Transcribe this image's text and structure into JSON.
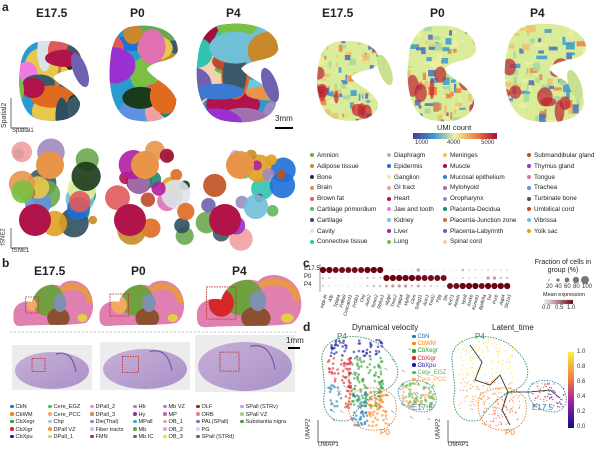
{
  "panels": {
    "a": "a",
    "b": "b",
    "c": "c",
    "d": "d"
  },
  "stages": [
    "E17.5",
    "P0",
    "P4"
  ],
  "panel_a": {
    "spatial_axes": {
      "x": "Spatial1",
      "y": "Spatial2"
    },
    "tsne_axes": {
      "x": "tSNE1",
      "y": "tSNE2"
    },
    "scale_bar": "3mm",
    "umi": {
      "label": "UMI count",
      "ticks": [
        "1000",
        "4000",
        "5000"
      ]
    },
    "legend": [
      {
        "label": "Amnion",
        "color": "#6aa84f"
      },
      {
        "label": "Adipose tissue",
        "color": "#c9892a"
      },
      {
        "label": "Bone",
        "color": "#1b3a1b"
      },
      {
        "label": "Brain",
        "color": "#e8954a"
      },
      {
        "label": "Brown fat",
        "color": "#e05a5a"
      },
      {
        "label": "Cartilage primordium",
        "color": "#5cb85c"
      },
      {
        "label": "Cartilage",
        "color": "#2f4f5f"
      },
      {
        "label": "Cavity",
        "color": "#d9e4ea"
      },
      {
        "label": "Connective tissue",
        "color": "#2ec4b0"
      },
      {
        "label": "Diaphragm",
        "color": "#c9a6d6"
      },
      {
        "label": "Epidermis",
        "color": "#1f6fd6"
      },
      {
        "label": "Ganglion",
        "color": "#e6eea0"
      },
      {
        "label": "GI tract",
        "color": "#f0a0a0"
      },
      {
        "label": "Heart",
        "color": "#b0144a"
      },
      {
        "label": "Jaw and tooth",
        "color": "#f07ae0"
      },
      {
        "label": "Kidney",
        "color": "#6cc8e0"
      },
      {
        "label": "Liver",
        "color": "#b01ea0"
      },
      {
        "label": "Lung",
        "color": "#7ac143"
      },
      {
        "label": "Meninges",
        "color": "#e8c84a"
      },
      {
        "label": "Muscle",
        "color": "#a0103a"
      },
      {
        "label": "Mucosal epithelium",
        "color": "#3a7ad0"
      },
      {
        "label": "Mylohyoid",
        "color": "#a070b0"
      },
      {
        "label": "Oropharynx",
        "color": "#a088c0"
      },
      {
        "label": "Placenta-Decidua",
        "color": "#1a8a6a"
      },
      {
        "label": "Placenta-Junction zone",
        "color": "#e06a20"
      },
      {
        "label": "Placenta-Labyrinth",
        "color": "#7060b0"
      },
      {
        "label": "Spinal cord",
        "color": "#f2d0b0"
      },
      {
        "label": "Submandibular gland",
        "color": "#c05020"
      },
      {
        "label": "Thymus gland",
        "color": "#9a30d0"
      },
      {
        "label": "Tongue",
        "color": "#e070b0"
      },
      {
        "label": "Trachea",
        "color": "#6090e0"
      },
      {
        "label": "Turbinate bone",
        "color": "#3a5a6a"
      },
      {
        "label": "Umbilical cord",
        "color": "#c04a2a"
      },
      {
        "label": "Vibrissa",
        "color": "#70c0d8"
      },
      {
        "label": "Yolk sac",
        "color": "#e0a020"
      }
    ]
  },
  "panel_b": {
    "scale_bar": "1mm",
    "legend": [
      {
        "label": "CbN",
        "color": "#1f77b4"
      },
      {
        "label": "CbWM",
        "color": "#ff7f0e"
      },
      {
        "label": "CbXegr",
        "color": "#2ca02c"
      },
      {
        "label": "CbXigr",
        "color": "#d62728"
      },
      {
        "label": "CbXpu",
        "color": "#1a1aa0"
      },
      {
        "label": "Cere_EGZ",
        "color": "#4cbf4c"
      },
      {
        "label": "Cere_PCC",
        "color": "#f5a860"
      },
      {
        "label": "Chp",
        "color": "#9ecae1"
      },
      {
        "label": "DPall VZ",
        "color": "#e89a40"
      },
      {
        "label": "DPall_1",
        "color": "#e0d040"
      },
      {
        "label": "DPall_2",
        "color": "#f09a9a"
      },
      {
        "label": "DPall_3",
        "color": "#e08a40"
      },
      {
        "label": "Die(Thal)",
        "color": "#8090b0"
      },
      {
        "label": "Fiber tracts",
        "color": "#c8c8d8"
      },
      {
        "label": "FMN",
        "color": "#a03070"
      },
      {
        "label": "Hb",
        "color": "#d070b0"
      },
      {
        "label": "Hy",
        "color": "#8a3a8a"
      },
      {
        "label": "MPall",
        "color": "#30b0c0"
      },
      {
        "label": "Mb",
        "color": "#70a040"
      },
      {
        "label": "Mb IC",
        "color": "#9050a0"
      },
      {
        "label": "Mb VZ",
        "color": "#b080d0"
      },
      {
        "label": "MP",
        "color": "#c060c0"
      },
      {
        "label": "OB_1",
        "color": "#f0a0b0"
      },
      {
        "label": "OB_2",
        "color": "#d0b0e0"
      },
      {
        "label": "OB_3",
        "color": "#f0e020"
      },
      {
        "label": "OLF",
        "color": "#8a3010"
      },
      {
        "label": "ORB",
        "color": "#f08080"
      },
      {
        "label": "PAL(SPall)",
        "color": "#6080c0"
      },
      {
        "label": "PG",
        "color": "#e0d0f0"
      },
      {
        "label": "SPall (STRd)",
        "color": "#8a4a9a"
      },
      {
        "label": "SPall (STRv)",
        "color": "#c0a0e0"
      },
      {
        "label": "SPall VZ",
        "color": "#a0d080"
      },
      {
        "label": "Substantia nigra",
        "color": "#4a9a3a"
      }
    ]
  },
  "chart_data": [
    {
      "type": "dotplot",
      "panel": "c",
      "rows": [
        "E17.5",
        "P0",
        "P4"
      ],
      "genes": [
        "Hbb-bt",
        "Afp",
        "Tpbpa",
        "Prl8a9",
        "Ceacam11",
        "Prl3b1",
        "Ctsj",
        "Auts2",
        "Tenm2",
        "Rbfox1",
        "Mylpf",
        "Tnnc2",
        "Fabp4",
        "Myh8",
        "Ckm",
        "Snhg11",
        "Actc1",
        "Tnnt2",
        "Fgg",
        "Sln",
        "Krt71",
        "Amelx",
        "Vps8",
        "Aurkb",
        "Kcnmt1",
        "Bpifb9a",
        "Tnl",
        "Purb",
        "Aqp4",
        "Slc1a3"
      ],
      "mean_expression": [
        [
          1,
          1,
          0.95,
          0.95,
          0.95,
          0.95,
          0.95,
          1,
          1,
          1,
          0.05,
          0.05,
          0.05,
          0.05,
          0.05,
          0.35,
          0.05,
          0.05,
          0.05,
          0.05,
          0.05,
          0.05,
          0.25,
          0.1,
          0.1,
          0.05,
          0.1,
          0.1,
          0.1,
          0.1
        ],
        [
          0.2,
          0.15,
          0.05,
          0.05,
          0.05,
          0.05,
          0.05,
          0.2,
          0.15,
          0.15,
          1,
          1,
          1,
          1,
          1,
          0.95,
          0.95,
          0.95,
          0.95,
          0.95,
          0.05,
          0.05,
          0.15,
          0.1,
          0.1,
          0.05,
          0.35,
          0.35,
          0.2,
          0.2
        ],
        [
          0.15,
          0.1,
          0.05,
          0.05,
          0.05,
          0.05,
          0.05,
          0.15,
          0.2,
          0.2,
          0.3,
          0.35,
          0.35,
          0.35,
          0.2,
          0.3,
          0.15,
          0.15,
          0.1,
          0.1,
          0.95,
          0.95,
          1,
          1,
          1,
          0.95,
          1,
          1,
          1,
          1
        ]
      ],
      "fraction_legend": {
        "title": "Fraction of cells in group (%)",
        "ticks": [
          "20",
          "40",
          "60",
          "80",
          "100"
        ]
      },
      "expr_legend": {
        "title": "Mean expression",
        "ticks": [
          "0.0",
          "0.5",
          "1.0"
        ]
      }
    }
  ],
  "panel_d": {
    "velocity_title": "Dynamical velocity",
    "latent_title": "Latent_time",
    "axes": {
      "x": "UMAP1",
      "y": "UMAP2"
    },
    "group_labels": [
      "P4",
      "P0",
      "E17.5"
    ],
    "legend": [
      {
        "label": "CbN",
        "color": "#1f77b4"
      },
      {
        "label": "CbWM",
        "color": "#ff7f0e"
      },
      {
        "label": "CbXegr",
        "color": "#2ca02c"
      },
      {
        "label": "CbXigr",
        "color": "#d62728"
      },
      {
        "label": "CbXpu",
        "color": "#1a1aa0"
      },
      {
        "label": "Cere_EGZ",
        "color": "#4cbf4c"
      },
      {
        "label": "Cere_PCC",
        "color": "#f5a860"
      }
    ],
    "colorbar_ticks": [
      "1.0",
      "0.8",
      "0.6",
      "0.4",
      "0.2",
      "0.0"
    ]
  }
}
